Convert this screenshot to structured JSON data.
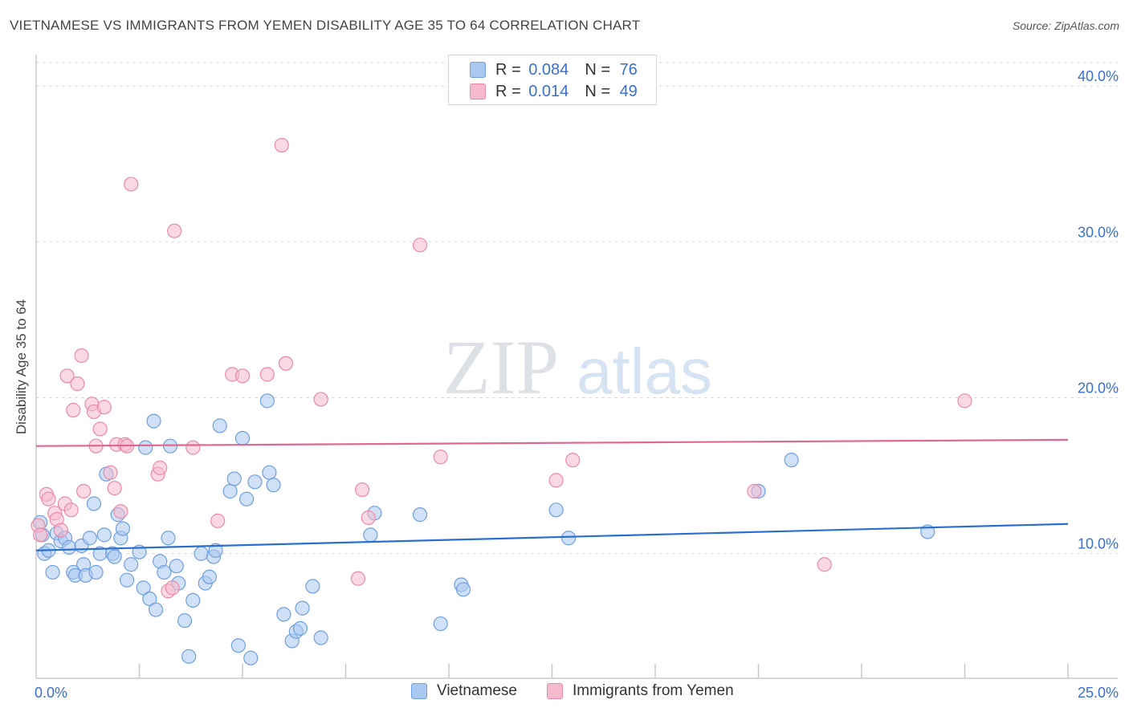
{
  "title": "VIETNAMESE VS IMMIGRANTS FROM YEMEN DISABILITY AGE 35 TO 64 CORRELATION CHART",
  "source": "Source: ZipAtlas.com",
  "watermark": {
    "zip": "ZIP",
    "atlas": "atlas"
  },
  "legend": {
    "rows": [
      {
        "r_label": "R = ",
        "r_value": "0.084",
        "n_label": "N = ",
        "n_value": "76"
      },
      {
        "r_label": "R = ",
        "r_value": "0.014",
        "n_label": "N = ",
        "n_value": "49"
      }
    ]
  },
  "colors": {
    "blue_fill": "#a9c8f0",
    "blue_stroke": "#6f9fde",
    "blue_line": "#2a6fd0",
    "pink_fill": "#f5b9cc",
    "pink_stroke": "#e98aa7",
    "pink_line": "#e0688f",
    "tick_label": "#3a6fd0",
    "grid": "#d9d9d9"
  },
  "chart_data": {
    "type": "scatter",
    "title": "VIETNAMESE VS IMMIGRANTS FROM YEMEN DISABILITY AGE 35 TO 64 CORRELATION CHART",
    "xlabel": "",
    "ylabel": "Disability Age 35 to 64",
    "xlim": [
      0,
      25
    ],
    "ylim": [
      2.0,
      41.5
    ],
    "x_tick_labels": [
      "0.0%",
      "25.0%"
    ],
    "y_ticks": [
      10,
      20,
      30,
      40
    ],
    "y_tick_labels": [
      "10.0%",
      "20.0%",
      "30.0%",
      "40.0%"
    ],
    "series": [
      {
        "name": "Vietnamese",
        "color": "blue",
        "r": "0.084",
        "n": "76",
        "trend": {
          "x": [
            0,
            25
          ],
          "y": [
            10.2,
            11.9
          ]
        },
        "points": [
          [
            0.1,
            12.0
          ],
          [
            0.15,
            11.2
          ],
          [
            0.2,
            10.0
          ],
          [
            0.3,
            10.2
          ],
          [
            0.4,
            8.8
          ],
          [
            0.5,
            11.3
          ],
          [
            0.6,
            10.8
          ],
          [
            0.7,
            11.0
          ],
          [
            0.8,
            10.4
          ],
          [
            0.9,
            8.8
          ],
          [
            0.95,
            8.6
          ],
          [
            1.1,
            10.5
          ],
          [
            1.15,
            9.3
          ],
          [
            1.2,
            8.6
          ],
          [
            1.3,
            11.0
          ],
          [
            1.4,
            13.2
          ],
          [
            1.45,
            8.8
          ],
          [
            1.55,
            10.0
          ],
          [
            1.65,
            11.2
          ],
          [
            1.7,
            15.1
          ],
          [
            1.85,
            10.0
          ],
          [
            1.9,
            9.8
          ],
          [
            1.98,
            12.5
          ],
          [
            2.05,
            11.0
          ],
          [
            2.1,
            11.6
          ],
          [
            2.2,
            8.3
          ],
          [
            2.3,
            9.3
          ],
          [
            2.5,
            10.1
          ],
          [
            2.6,
            7.8
          ],
          [
            2.65,
            16.8
          ],
          [
            2.75,
            7.1
          ],
          [
            2.85,
            18.5
          ],
          [
            2.9,
            6.4
          ],
          [
            3.0,
            9.5
          ],
          [
            3.1,
            8.8
          ],
          [
            3.2,
            11.0
          ],
          [
            3.25,
            16.9
          ],
          [
            3.4,
            9.2
          ],
          [
            3.45,
            8.1
          ],
          [
            3.6,
            5.7
          ],
          [
            3.7,
            3.4
          ],
          [
            3.8,
            7.0
          ],
          [
            4.0,
            10.0
          ],
          [
            4.1,
            8.1
          ],
          [
            4.2,
            8.5
          ],
          [
            4.3,
            9.8
          ],
          [
            4.35,
            10.2
          ],
          [
            4.45,
            18.2
          ],
          [
            4.7,
            14.0
          ],
          [
            4.8,
            14.8
          ],
          [
            4.9,
            4.1
          ],
          [
            5.0,
            17.4
          ],
          [
            5.1,
            13.5
          ],
          [
            5.2,
            3.3
          ],
          [
            5.3,
            14.6
          ],
          [
            5.6,
            19.8
          ],
          [
            5.65,
            15.2
          ],
          [
            5.75,
            14.4
          ],
          [
            6.0,
            6.1
          ],
          [
            6.2,
            4.4
          ],
          [
            6.3,
            5.0
          ],
          [
            6.4,
            5.2
          ],
          [
            6.45,
            6.5
          ],
          [
            6.7,
            7.9
          ],
          [
            6.9,
            4.6
          ],
          [
            8.1,
            11.2
          ],
          [
            8.2,
            12.6
          ],
          [
            9.3,
            12.5
          ],
          [
            9.8,
            5.5
          ],
          [
            10.3,
            8.0
          ],
          [
            10.35,
            7.7
          ],
          [
            12.6,
            12.8
          ],
          [
            12.9,
            11.0
          ],
          [
            17.5,
            14.0
          ],
          [
            18.3,
            16.0
          ],
          [
            21.6,
            11.4
          ]
        ]
      },
      {
        "name": "Immigrants from Yemen",
        "color": "pink",
        "r": "0.014",
        "n": "49",
        "trend": {
          "x": [
            0,
            25
          ],
          "y": [
            16.9,
            17.3
          ]
        },
        "points": [
          [
            0.05,
            11.8
          ],
          [
            0.1,
            11.2
          ],
          [
            0.25,
            13.8
          ],
          [
            0.3,
            13.5
          ],
          [
            0.45,
            12.6
          ],
          [
            0.5,
            12.2
          ],
          [
            0.6,
            11.5
          ],
          [
            0.7,
            13.2
          ],
          [
            0.75,
            21.4
          ],
          [
            0.85,
            12.8
          ],
          [
            0.9,
            19.2
          ],
          [
            1.0,
            20.9
          ],
          [
            1.1,
            22.7
          ],
          [
            1.15,
            14.0
          ],
          [
            1.35,
            19.6
          ],
          [
            1.4,
            19.1
          ],
          [
            1.45,
            16.9
          ],
          [
            1.55,
            18.0
          ],
          [
            1.65,
            19.4
          ],
          [
            1.8,
            15.2
          ],
          [
            1.9,
            14.2
          ],
          [
            1.95,
            17.0
          ],
          [
            2.05,
            12.7
          ],
          [
            2.15,
            17.0
          ],
          [
            2.2,
            16.9
          ],
          [
            2.3,
            33.7
          ],
          [
            2.95,
            15.1
          ],
          [
            3.0,
            15.5
          ],
          [
            3.2,
            7.6
          ],
          [
            3.3,
            7.8
          ],
          [
            3.35,
            30.7
          ],
          [
            3.8,
            16.8
          ],
          [
            4.4,
            12.1
          ],
          [
            4.75,
            21.5
          ],
          [
            5.0,
            21.4
          ],
          [
            5.6,
            21.5
          ],
          [
            5.95,
            36.2
          ],
          [
            6.05,
            22.2
          ],
          [
            6.9,
            19.9
          ],
          [
            7.8,
            8.4
          ],
          [
            7.9,
            14.1
          ],
          [
            8.05,
            12.3
          ],
          [
            9.3,
            29.8
          ],
          [
            9.8,
            16.2
          ],
          [
            12.6,
            14.7
          ],
          [
            13.0,
            16.0
          ],
          [
            17.4,
            14.0
          ],
          [
            19.1,
            9.3
          ],
          [
            22.5,
            19.8
          ]
        ]
      }
    ],
    "bottom_legend": [
      "Vietnamese",
      "Immigrants from Yemen"
    ]
  }
}
